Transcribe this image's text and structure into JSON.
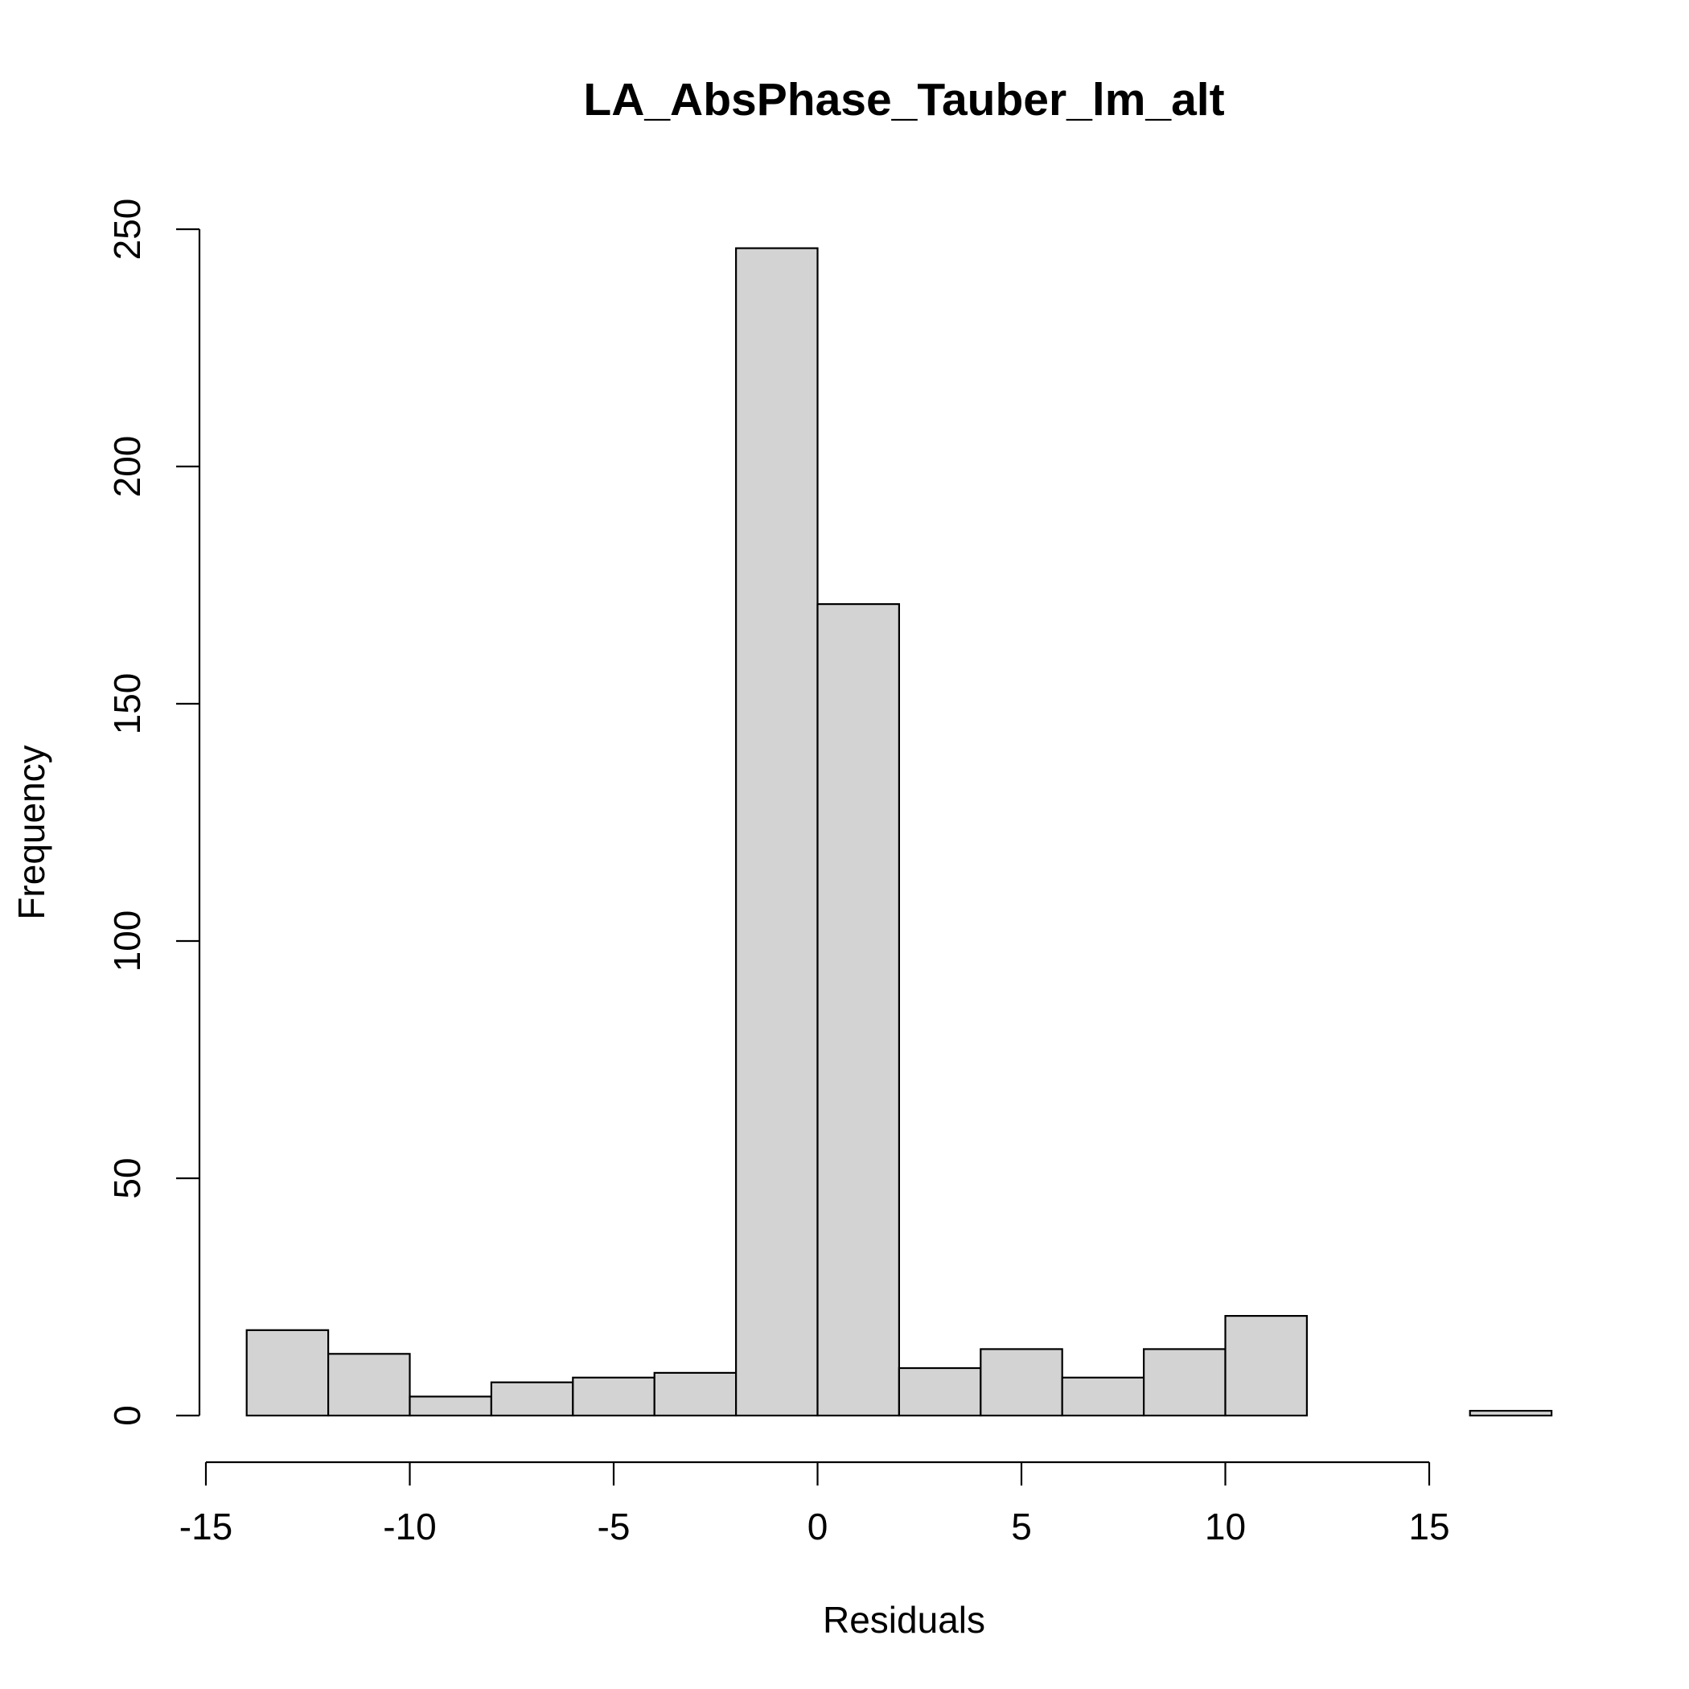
{
  "chart_data": {
    "type": "bar",
    "title": "LA_AbsPhase_Tauber_lm_alt",
    "xlabel": "Residuals",
    "ylabel": "Frequency",
    "bins": [
      {
        "start": -14,
        "end": -12,
        "count": 18
      },
      {
        "start": -12,
        "end": -10,
        "count": 13
      },
      {
        "start": -10,
        "end": -8,
        "count": 4
      },
      {
        "start": -8,
        "end": -6,
        "count": 7
      },
      {
        "start": -6,
        "end": -4,
        "count": 8
      },
      {
        "start": -4,
        "end": -2,
        "count": 9
      },
      {
        "start": -2,
        "end": 0,
        "count": 246
      },
      {
        "start": 0,
        "end": 2,
        "count": 171
      },
      {
        "start": 2,
        "end": 4,
        "count": 10
      },
      {
        "start": 4,
        "end": 6,
        "count": 14
      },
      {
        "start": 6,
        "end": 8,
        "count": 8
      },
      {
        "start": 8,
        "end": 10,
        "count": 14
      },
      {
        "start": 10,
        "end": 12,
        "count": 21
      },
      {
        "start": 12,
        "end": 14,
        "count": 0
      },
      {
        "start": 14,
        "end": 16,
        "count": 0
      },
      {
        "start": 16,
        "end": 18,
        "count": 1
      }
    ],
    "x_ticks": [
      -15,
      -10,
      -5,
      0,
      5,
      10,
      15
    ],
    "x_tick_labels": [
      "-15",
      "-10",
      "-5",
      "0",
      "5",
      "10",
      "15"
    ],
    "y_ticks": [
      0,
      50,
      100,
      150,
      200,
      250
    ],
    "y_tick_labels": [
      "0",
      "50",
      "100",
      "150",
      "200",
      "250"
    ],
    "xlim": [
      -15,
      15
    ],
    "ylim": [
      0,
      250
    ],
    "grid": false,
    "colors": {
      "bar_fill": "#d3d3d3",
      "bar_stroke": "#000000"
    }
  }
}
